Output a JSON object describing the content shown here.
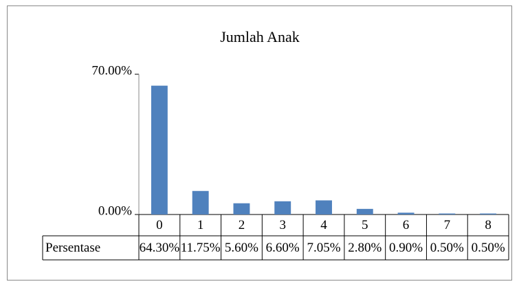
{
  "chart_data": {
    "type": "bar",
    "title": "Jumlah Anak",
    "categories": [
      "0",
      "1",
      "2",
      "3",
      "4",
      "5",
      "6",
      "7",
      "8"
    ],
    "series": [
      {
        "name": "Persentase",
        "color": "#4f81bd",
        "values": [
          64.3,
          11.75,
          5.6,
          6.6,
          7.05,
          2.8,
          0.9,
          0.5,
          0.5
        ],
        "value_labels": [
          "64.30%",
          "11.75%",
          "5.60%",
          "6.60%",
          "7.05%",
          "2.80%",
          "0.90%",
          "0.50%",
          "0.50%"
        ]
      }
    ],
    "ylim": [
      0,
      70
    ],
    "yticks": [
      {
        "value": 0,
        "label": "0.00%"
      },
      {
        "value": 70,
        "label": "70.00%"
      }
    ]
  }
}
